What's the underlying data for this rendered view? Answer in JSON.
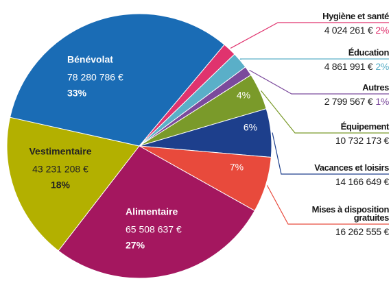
{
  "chart_data": {
    "type": "pie",
    "categories": [
      "Hygiène et santé",
      "Éducation",
      "Autres",
      "Équipement",
      "Vacances et loisirs",
      "Mises à disposition gratuites",
      "Alimentaire",
      "Vestimentaire",
      "Bénévolat"
    ],
    "values": [
      4024261,
      4861991,
      2799567,
      10732173,
      14166649,
      16262555,
      65508637,
      43231208,
      78280786
    ],
    "value_labels": [
      "4 024 261 €",
      "4 861 991 €",
      "2 799 567 €",
      "10 732 173 €",
      "14 166 649 €",
      "16 262 555 €",
      "65 508 637 €",
      "43 231 208 €",
      "78 280 786 €"
    ],
    "percents": [
      2,
      2,
      1,
      4,
      6,
      7,
      27,
      18,
      33
    ],
    "percent_labels": [
      "2%",
      "2%",
      "1%",
      "4%",
      "6%",
      "7%",
      "27%",
      "18%",
      "33%"
    ],
    "colors": [
      "#e0336e",
      "#5aafc8",
      "#7b4a9c",
      "#7a9a2a",
      "#1d3f8c",
      "#e84a3c",
      "#a4175f",
      "#b3b000",
      "#1a6cb5"
    ]
  }
}
